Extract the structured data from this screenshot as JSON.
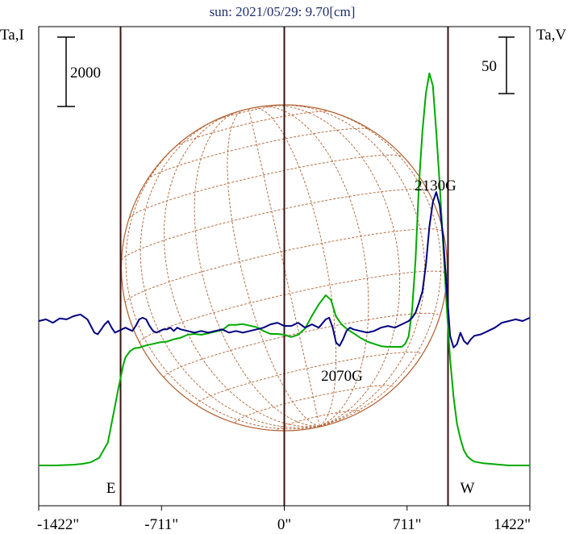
{
  "chart_data": {
    "type": "line",
    "title": "sun: 2021/05/29: 9.70[cm]",
    "left_axis_label": "Ta,I",
    "right_axis_label": "Ta,V",
    "left_scale_bar": {
      "label": "2000",
      "value": 2000
    },
    "right_scale_bar": {
      "label": "50",
      "value": 50
    },
    "x_ticks": [
      {
        "value": -1422,
        "label": "-1422\""
      },
      {
        "value": -711,
        "label": "-711\""
      },
      {
        "value": 0,
        "label": "0\""
      },
      {
        "value": 711,
        "label": "711\""
      },
      {
        "value": 1422,
        "label": "1422\""
      }
    ],
    "xlim": [
      -1422,
      1422
    ],
    "limb_markers": [
      {
        "x": -948,
        "label": "E"
      },
      {
        "x": 948,
        "label": "W"
      }
    ],
    "center_line_x": 0,
    "annotations": [
      {
        "text": "2130G",
        "x": 880,
        "y_intensity": 1.0
      },
      {
        "text": "2070G",
        "x": 350,
        "y_intensity": -0.1
      }
    ],
    "series": [
      {
        "key": "intensity",
        "color": "#00aa00",
        "x": [
          -1422,
          -1322,
          -1222,
          -1172,
          -1122,
          -1072,
          -1022,
          -987,
          -962,
          -948,
          -935,
          -920,
          -895,
          -870,
          -840,
          -800,
          -760,
          -720,
          -680,
          -640,
          -600,
          -560,
          -520,
          -480,
          -440,
          -400,
          -360,
          -320,
          -280,
          -240,
          -200,
          -160,
          -120,
          -80,
          -40,
          0,
          40,
          80,
          120,
          160,
          200,
          240,
          270,
          300,
          330,
          360,
          400,
          440,
          480,
          520,
          560,
          600,
          640,
          680,
          700,
          720,
          740,
          760,
          780,
          800,
          820,
          840,
          860,
          880,
          900,
          920,
          940,
          960,
          980,
          1000,
          1020,
          1040,
          1060,
          1080,
          1100,
          1150,
          1200,
          1250,
          1300,
          1350,
          1422
        ],
        "y": [
          0.0,
          0.0,
          0.01,
          0.02,
          0.04,
          0.1,
          0.3,
          0.7,
          1.0,
          1.15,
          1.3,
          1.42,
          1.5,
          1.54,
          1.55,
          1.58,
          1.6,
          1.62,
          1.63,
          1.66,
          1.68,
          1.72,
          1.73,
          1.72,
          1.74,
          1.76,
          1.78,
          1.85,
          1.85,
          1.86,
          1.84,
          1.82,
          1.77,
          1.73,
          1.73,
          1.72,
          1.69,
          1.72,
          1.8,
          1.97,
          2.12,
          2.24,
          2.18,
          1.96,
          1.86,
          1.8,
          1.74,
          1.68,
          1.63,
          1.6,
          1.57,
          1.56,
          1.56,
          1.56,
          1.6,
          1.7,
          2.05,
          2.7,
          3.7,
          4.4,
          4.9,
          5.16,
          5.0,
          4.4,
          3.7,
          2.9,
          2.1,
          1.4,
          0.9,
          0.55,
          0.35,
          0.2,
          0.12,
          0.08,
          0.05,
          0.03,
          0.02,
          0.01,
          0.0,
          0.0,
          0.0
        ]
      },
      {
        "key": "polarization",
        "color": "#000080",
        "x": [
          -1422,
          -1380,
          -1340,
          -1300,
          -1260,
          -1220,
          -1180,
          -1140,
          -1120,
          -1100,
          -1080,
          -1060,
          -1040,
          -1020,
          -1000,
          -980,
          -960,
          -940,
          -920,
          -900,
          -880,
          -860,
          -840,
          -820,
          -800,
          -780,
          -760,
          -740,
          -720,
          -700,
          -680,
          -660,
          -640,
          -620,
          -600,
          -560,
          -520,
          -480,
          -440,
          -400,
          -360,
          -320,
          -280,
          -240,
          -200,
          -160,
          -120,
          -80,
          -40,
          0,
          40,
          80,
          120,
          160,
          200,
          240,
          260,
          280,
          300,
          320,
          340,
          360,
          380,
          400,
          440,
          480,
          520,
          560,
          600,
          640,
          680,
          720,
          740,
          760,
          780,
          800,
          820,
          840,
          860,
          880,
          900,
          920,
          940,
          960,
          980,
          1000,
          1020,
          1040,
          1060,
          1080,
          1100,
          1140,
          1180,
          1220,
          1260,
          1300,
          1340,
          1380,
          1422
        ],
        "y": [
          0.0,
          0.05,
          -0.05,
          0.08,
          0.05,
          0.15,
          0.2,
          0.05,
          -0.15,
          -0.35,
          -0.4,
          -0.25,
          -0.1,
          0.0,
          -0.2,
          -0.35,
          -0.3,
          -0.25,
          -0.2,
          -0.25,
          -0.3,
          -0.15,
          0.05,
          0.1,
          0.05,
          -0.15,
          -0.3,
          -0.35,
          -0.3,
          -0.25,
          -0.25,
          -0.2,
          -0.3,
          -0.2,
          -0.25,
          -0.3,
          -0.35,
          -0.3,
          -0.35,
          -0.3,
          -0.25,
          -0.35,
          -0.3,
          -0.35,
          -0.3,
          -0.25,
          -0.2,
          -0.1,
          -0.05,
          -0.15,
          -0.15,
          -0.05,
          -0.2,
          -0.1,
          -0.2,
          0.05,
          0.1,
          -0.2,
          -0.65,
          -0.75,
          -0.55,
          -0.3,
          -0.2,
          -0.25,
          -0.3,
          -0.35,
          -0.3,
          -0.2,
          -0.15,
          -0.2,
          -0.1,
          0.0,
          0.1,
          0.25,
          0.55,
          0.9,
          1.7,
          2.85,
          3.6,
          3.9,
          3.5,
          2.5,
          1.0,
          -0.45,
          -0.8,
          -0.7,
          -0.35,
          -0.6,
          -0.7,
          -0.55,
          -0.45,
          -0.4,
          -0.3,
          -0.2,
          -0.05,
          0.0,
          0.05,
          0.0,
          0.1
        ]
      }
    ]
  }
}
